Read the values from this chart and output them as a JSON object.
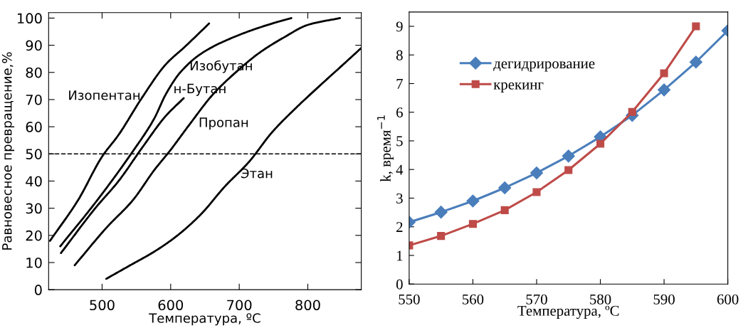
{
  "chart_data": [
    {
      "type": "line",
      "xlabel": "Температура, ºC",
      "ylabel": "Равновесное превращение,%",
      "xlim": [
        422,
        878
      ],
      "ylim": [
        0,
        102
      ],
      "xticks": [
        500,
        600,
        700,
        800
      ],
      "yticks": [
        0,
        10,
        20,
        30,
        40,
        50,
        60,
        70,
        80,
        90,
        100
      ],
      "grid": false,
      "legend": false,
      "marker": "none",
      "series": [
        {
          "name": "Изопентан",
          "color": "#000000",
          "x": [
            424,
            465,
            500,
            524,
            559,
            593,
            621,
            656
          ],
          "values": [
            18,
            33,
            49,
            57,
            71,
            83,
            89.5,
            98
          ]
        },
        {
          "name": "Изобутан",
          "color": "#000000",
          "x": [
            439,
            490,
            545,
            576,
            593,
            614,
            645,
            697,
            748,
            776
          ],
          "values": [
            16,
            32,
            51,
            63,
            72,
            80,
            87,
            93.5,
            98,
            100
          ]
        },
        {
          "name": "н-Бутан",
          "color": "#000000",
          "x": [
            440,
            490,
            524,
            559,
            593,
            619
          ],
          "values": [
            13.5,
            30,
            40,
            52.5,
            64,
            70.5
          ]
        },
        {
          "name": "Пропан",
          "color": "#000000",
          "x": [
            460,
            507,
            545,
            576,
            600,
            628,
            662,
            697,
            731,
            766,
            800,
            847
          ],
          "values": [
            9,
            23,
            33,
            44,
            51.5,
            61,
            72,
            80.5,
            87.5,
            93,
            97.5,
            100
          ]
        },
        {
          "name": "Этан",
          "color": "#000000",
          "x": [
            506,
            541,
            576,
            610,
            645,
            679,
            714,
            748,
            783,
            817,
            852,
            878
          ],
          "values": [
            4,
            9,
            14,
            20,
            28,
            38,
            47,
            58,
            67,
            75,
            83,
            89
          ]
        }
      ],
      "ref_lines": [
        {
          "axis": "y",
          "value": 50,
          "color": "#000000",
          "line_style": "dashed"
        }
      ]
    },
    {
      "type": "line",
      "xlabel": "Температура, ºC",
      "ylabel": "k, время$^{−1}$",
      "xlim": [
        550,
        600
      ],
      "ylim": [
        0,
        9.5
      ],
      "xticks": [
        550,
        560,
        570,
        580,
        590,
        600
      ],
      "yticks": [
        0,
        1,
        2,
        3,
        4,
        5,
        6,
        7,
        8,
        9
      ],
      "grid": false,
      "legend": "top left",
      "x": [
        550,
        555,
        560,
        565,
        570,
        575,
        580,
        585,
        590,
        595,
        600
      ],
      "series": [
        {
          "name": "дегидрирование",
          "color": "#4a7ebb",
          "marker": "diamond",
          "values": [
            2.16,
            2.51,
            2.9,
            3.36,
            3.88,
            4.47,
            5.14,
            5.89,
            6.78,
            7.75,
            8.85
          ]
        },
        {
          "name": "крекинг",
          "color": "#be4b48",
          "marker": "square",
          "values": [
            1.35,
            1.68,
            2.1,
            2.58,
            3.21,
            3.98,
            4.9,
            6.01,
            7.36,
            9.0,
            null
          ]
        }
      ]
    }
  ]
}
